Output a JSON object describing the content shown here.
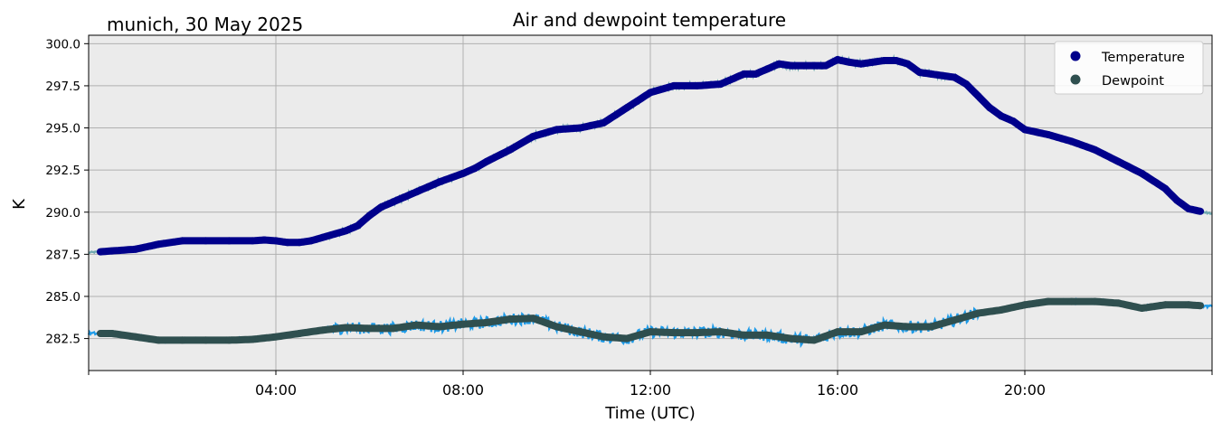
{
  "chart_data": {
    "type": "line",
    "title": "Air and dewpoint temperature",
    "subtitle": "munich, 30 May 2025",
    "xlabel": "Time (UTC)",
    "ylabel": "K",
    "x_range_hours": [
      0,
      24
    ],
    "ylim": [
      280.6,
      300.5
    ],
    "grid": true,
    "legend_position": "top-right",
    "x_ticks": [
      {
        "hour": 4,
        "label": "04:00"
      },
      {
        "hour": 8,
        "label": "08:00"
      },
      {
        "hour": 12,
        "label": "12:00"
      },
      {
        "hour": 16,
        "label": "16:00"
      },
      {
        "hour": 20,
        "label": "20:00"
      }
    ],
    "y_ticks": [
      {
        "value": 282.5,
        "label": "282.5"
      },
      {
        "value": 285.0,
        "label": "285.0"
      },
      {
        "value": 287.5,
        "label": "287.5"
      },
      {
        "value": 290.0,
        "label": "290.0"
      },
      {
        "value": 292.5,
        "label": "292.5"
      },
      {
        "value": 295.0,
        "label": "295.0"
      },
      {
        "value": 297.5,
        "label": "297.5"
      },
      {
        "value": 300.0,
        "label": "300.0"
      }
    ],
    "series": [
      {
        "name": "Temperature",
        "marker_color": "#00008b",
        "raw_color": "#6fa8b0",
        "x": [
          0.0,
          0.5,
          1.0,
          1.5,
          2.0,
          2.5,
          3.0,
          3.5,
          3.75,
          4.0,
          4.25,
          4.5,
          4.75,
          5.0,
          5.5,
          5.75,
          6.0,
          6.25,
          6.5,
          6.75,
          7.0,
          7.25,
          7.5,
          8.0,
          8.25,
          8.5,
          9.0,
          9.5,
          10.0,
          10.5,
          11.0,
          11.5,
          12.0,
          12.5,
          13.0,
          13.5,
          14.0,
          14.25,
          14.5,
          14.75,
          15.0,
          15.5,
          15.75,
          16.0,
          16.25,
          16.5,
          16.75,
          17.0,
          17.25,
          17.5,
          17.75,
          18.0,
          18.25,
          18.5,
          18.75,
          19.0,
          19.25,
          19.5,
          19.75,
          20.0,
          20.5,
          21.0,
          21.5,
          22.0,
          22.5,
          23.0,
          23.25,
          23.5,
          24.0
        ],
        "values": [
          287.6,
          287.7,
          287.8,
          288.1,
          288.3,
          288.3,
          288.3,
          288.3,
          288.35,
          288.3,
          288.2,
          288.2,
          288.3,
          288.5,
          288.9,
          289.2,
          289.8,
          290.3,
          290.6,
          290.9,
          291.2,
          291.5,
          291.8,
          292.3,
          292.6,
          293.0,
          293.7,
          294.5,
          294.9,
          295.0,
          295.3,
          296.2,
          297.1,
          297.5,
          297.5,
          297.6,
          298.2,
          298.2,
          298.5,
          298.8,
          298.7,
          298.7,
          298.7,
          299.05,
          298.9,
          298.8,
          298.9,
          299.0,
          299.0,
          298.8,
          298.3,
          298.2,
          298.1,
          298.0,
          297.6,
          296.9,
          296.2,
          295.7,
          295.4,
          294.9,
          294.6,
          294.2,
          293.7,
          293.0,
          292.3,
          291.4,
          290.7,
          290.2,
          289.9
        ]
      },
      {
        "name": "Dewpoint",
        "marker_color": "#2f4f4f",
        "raw_color": "#1e9be8",
        "x": [
          0.0,
          0.5,
          1.0,
          1.5,
          2.0,
          2.5,
          3.0,
          3.5,
          4.0,
          4.5,
          5.0,
          5.5,
          6.0,
          6.5,
          7.0,
          7.5,
          8.0,
          8.5,
          9.0,
          9.5,
          10.0,
          10.5,
          11.0,
          11.5,
          12.0,
          12.5,
          13.0,
          13.5,
          14.0,
          14.5,
          15.0,
          15.5,
          16.0,
          16.5,
          17.0,
          17.5,
          18.0,
          18.5,
          19.0,
          19.5,
          20.0,
          20.5,
          21.0,
          21.5,
          22.0,
          22.5,
          23.0,
          23.5,
          24.0
        ],
        "values": [
          282.8,
          282.8,
          282.6,
          282.4,
          282.4,
          282.4,
          282.4,
          282.45,
          282.6,
          282.8,
          283.0,
          283.15,
          283.1,
          283.1,
          283.3,
          283.2,
          283.35,
          283.45,
          283.65,
          283.7,
          283.2,
          282.9,
          282.6,
          282.5,
          282.9,
          282.85,
          282.85,
          282.9,
          282.7,
          282.7,
          282.5,
          282.4,
          282.9,
          282.9,
          283.3,
          283.2,
          283.2,
          283.6,
          284.0,
          284.2,
          284.5,
          284.7,
          284.7,
          284.7,
          284.6,
          284.3,
          284.5,
          284.5,
          284.4
        ]
      }
    ]
  }
}
